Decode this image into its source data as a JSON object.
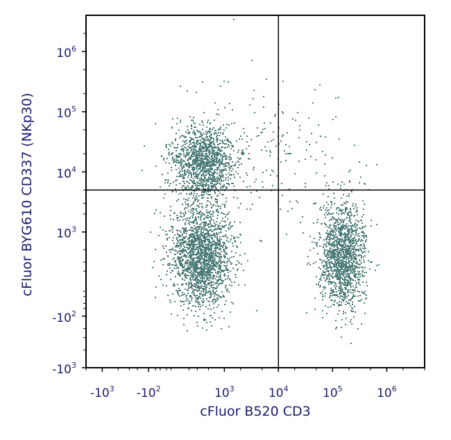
{
  "chart_data": {
    "type": "scatter",
    "title": "",
    "xlabel": "cFluor B520 CD3",
    "ylabel": "cFluor BYG610 CD337 (NKp30)",
    "x_scale": "biexponential",
    "y_scale": "biexponential",
    "xlim": [
      -2000,
      5000000
    ],
    "ylim": [
      -1000,
      4000000
    ],
    "x_ticks": [
      {
        "base": "-10",
        "exp": "3",
        "value": -1000
      },
      {
        "base": "-10",
        "exp": "2",
        "value": -100
      },
      {
        "base": "10",
        "exp": "3",
        "value": 1000
      },
      {
        "base": "10",
        "exp": "4",
        "value": 10000
      },
      {
        "base": "10",
        "exp": "5",
        "value": 100000
      },
      {
        "base": "10",
        "exp": "6",
        "value": 1000000
      }
    ],
    "y_ticks": [
      {
        "base": "-10",
        "exp": "3",
        "value": -1000
      },
      {
        "base": "-10",
        "exp": "2",
        "value": -100
      },
      {
        "base": "10",
        "exp": "3",
        "value": 1000
      },
      {
        "base": "10",
        "exp": "4",
        "value": 10000
      },
      {
        "base": "10",
        "exp": "5",
        "value": 100000
      },
      {
        "base": "10",
        "exp": "6",
        "value": 1000000
      }
    ],
    "quadrant_gate": {
      "x": 10000,
      "y": 5000
    },
    "point_color": "#4e7d78",
    "populations": [
      {
        "x_center": 400,
        "y_center": 15000,
        "share": 0.26
      },
      {
        "x_center": 350,
        "y_center": 400,
        "share": 0.4
      },
      {
        "x_center": 150000,
        "y_center": 400,
        "share": 0.3
      },
      {
        "x_center": 5000,
        "y_center": 20000,
        "share": 0.04
      }
    ],
    "grid": false,
    "legend": "none"
  }
}
